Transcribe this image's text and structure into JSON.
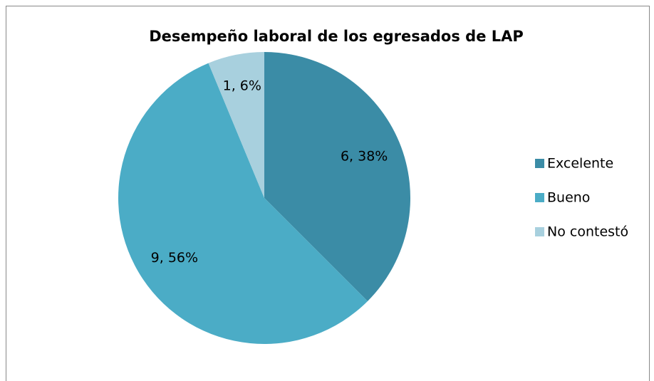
{
  "chart_data": {
    "type": "pie",
    "title": "Desempeño laboral de los egresados de LAP",
    "categories": [
      "Excelente",
      "Bueno",
      "No contestó"
    ],
    "values": [
      6,
      9,
      1
    ],
    "value_labels": [
      "6, 38%",
      "9, 56%",
      "1, 6%"
    ],
    "colors": [
      "#3b8ca6",
      "#4bacc6",
      "#a8d0de"
    ],
    "legend": "right"
  }
}
